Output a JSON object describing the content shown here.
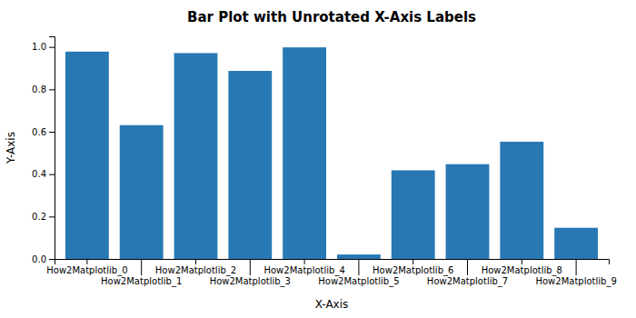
{
  "chart_data": {
    "type": "bar",
    "title": "Bar Plot with Unrotated X-Axis Labels",
    "xlabel": "X-Axis",
    "ylabel": "Y-Axis",
    "categories": [
      "How2Matplotlib_0",
      "How2Matplotlib_1",
      "How2Matplotlib_2",
      "How2Matplotlib_3",
      "How2Matplotlib_4",
      "How2Matplotlib_5",
      "How2Matplotlib_6",
      "How2Matplotlib_7",
      "How2Matplotlib_8",
      "How2Matplotlib_9"
    ],
    "values": [
      0.978,
      0.631,
      0.971,
      0.887,
      0.998,
      0.021,
      0.418,
      0.447,
      0.553,
      0.147
    ],
    "color": "#2878b4",
    "ylim": [
      0,
      1.05
    ],
    "yticks": [
      {
        "value": 0,
        "label": "0.0"
      },
      0.2,
      0.4,
      0.6,
      0.8,
      {
        "value": 1,
        "label": "1.0"
      }
    ],
    "grid": false
  }
}
